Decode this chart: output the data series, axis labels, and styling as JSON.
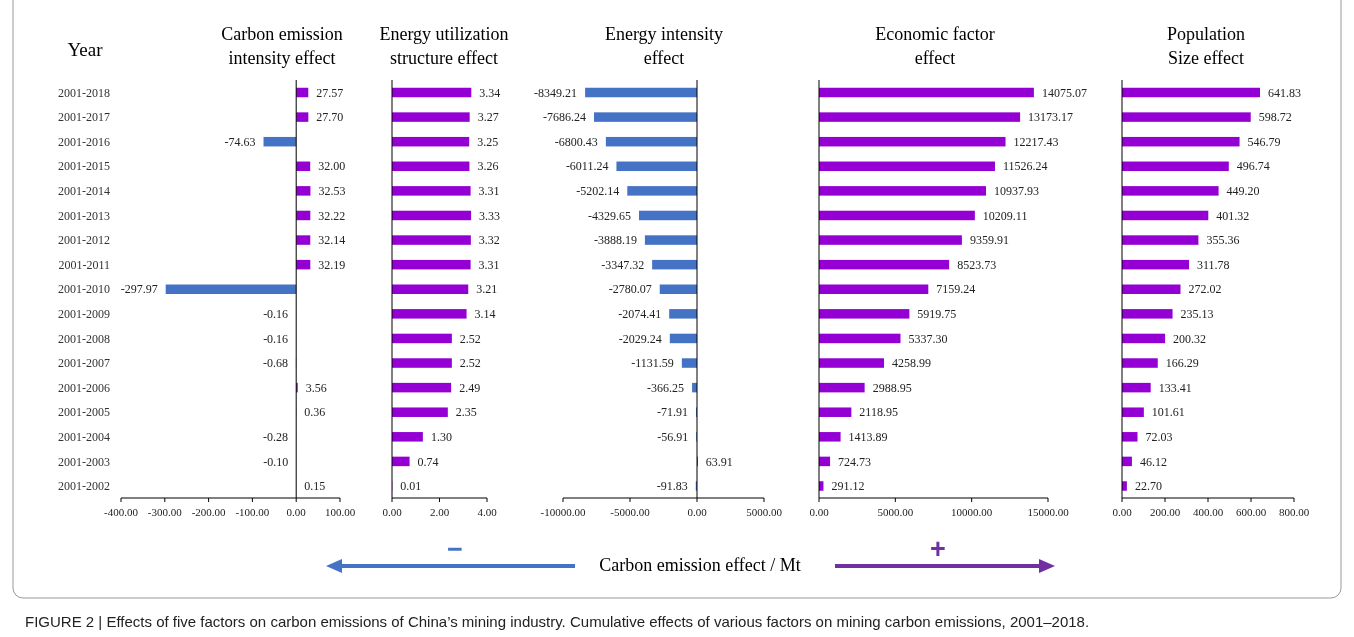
{
  "chart_data": [
    {
      "type": "bar",
      "orientation": "horizontal",
      "title": "Carbon emission\nintensity effect",
      "ylabel": "Year",
      "categories": [
        "2001-2018",
        "2001-2017",
        "2001-2016",
        "2001-2015",
        "2001-2014",
        "2001-2013",
        "2001-2012",
        "2001-2011",
        "2001-2010",
        "2001-2009",
        "2001-2008",
        "2001-2007",
        "2001-2006",
        "2001-2005",
        "2001-2004",
        "2001-2003",
        "2001-2002"
      ],
      "values": [
        27.57,
        27.7,
        -74.63,
        32.0,
        32.53,
        32.22,
        32.14,
        32.19,
        -297.97,
        -0.16,
        -0.16,
        -0.68,
        3.56,
        0.36,
        -0.28,
        -0.1,
        0.15
      ],
      "value_labels": [
        "27.57",
        "27.70",
        "-74.63",
        "32.00",
        "32.53",
        "32.22",
        "32.14",
        "32.19",
        "-297.97",
        "-0.16",
        "-0.16",
        "-0.68",
        "3.56",
        "0.36",
        "-0.28",
        "-0.10",
        "0.15"
      ],
      "colors": [
        "#9400d3",
        "#9400d3",
        "#4472c4",
        "#9400d3",
        "#9400d3",
        "#9400d3",
        "#9400d3",
        "#9400d3",
        "#4472c4",
        "#4472c4",
        "#4472c4",
        "#4472c4",
        "#9400d3",
        "#9400d3",
        "#4472c4",
        "#4472c4",
        "#9400d3"
      ],
      "xlim": [
        -400,
        100
      ],
      "xticks": [
        {
          "value": -400,
          "label": "-400.00"
        },
        {
          "value": -300,
          "label": "-300.00"
        },
        {
          "value": -200,
          "label": "-200.00"
        },
        {
          "value": -100,
          "label": "-100.00"
        },
        {
          "value": 0,
          "label": "0.00"
        },
        {
          "value": 100,
          "label": "100.00"
        }
      ],
      "annotations": [
        "FIGURE 2 | Effects of five factors on carbon emissions of China’s mining industry. Cumulative effects of various factors on mining carbon emissions, 2001–2018."
      ]
    },
    {
      "type": "bar",
      "orientation": "horizontal",
      "title": "Energy utilization\nstructure effect",
      "annotations": [
        "−"
      ],
      "categories": [
        null,
        null,
        null,
        null,
        null,
        null,
        null,
        null,
        null,
        null,
        null,
        null,
        null,
        null,
        null,
        null,
        null
      ],
      "values": [
        3.34,
        3.27,
        3.25,
        3.26,
        3.31,
        3.33,
        3.32,
        3.31,
        3.21,
        3.14,
        2.52,
        2.52,
        2.49,
        2.35,
        1.3,
        0.74,
        0.01
      ],
      "value_labels": [
        "3.34",
        "3.27",
        "3.25",
        "3.26",
        "3.31",
        "3.33",
        "3.32",
        "3.31",
        "3.21",
        "3.14",
        "2.52",
        "2.52",
        "2.49",
        "2.35",
        "1.30",
        "0.74",
        "0.01"
      ],
      "color": "#9400d3",
      "xlim": [
        0,
        4
      ],
      "xticks": [
        {
          "value": 0,
          "label": "0.00"
        },
        {
          "value": 2,
          "label": "2.00"
        },
        {
          "value": 4,
          "label": "4.00"
        }
      ]
    },
    {
      "type": "bar",
      "orientation": "horizontal",
      "title": "Energy intensity\neffect",
      "xlabel": "Carbon emission effect / Mt",
      "categories": [
        null,
        null,
        null,
        null,
        null,
        null,
        null,
        null,
        null,
        null,
        null,
        null,
        null,
        null,
        null,
        null,
        null
      ],
      "values": [
        -8349.21,
        -7686.24,
        -6800.43,
        -6011.24,
        -5202.14,
        -4329.65,
        -3888.19,
        -3347.32,
        -2780.07,
        -2074.41,
        -2029.24,
        -1131.59,
        -366.25,
        -71.91,
        -56.91,
        63.91,
        -91.83
      ],
      "value_labels": [
        "-8349.21",
        "-7686.24",
        "-6800.43",
        "-6011.24",
        "-5202.14",
        "-4329.65",
        "-3888.19",
        "-3347.32",
        "-2780.07",
        "-2074.41",
        "-2029.24",
        "-1131.59",
        "-366.25",
        "-71.91",
        "-56.91",
        "63.91",
        "-91.83"
      ],
      "colors": [
        "#4472c4",
        "#4472c4",
        "#4472c4",
        "#4472c4",
        "#4472c4",
        "#4472c4",
        "#4472c4",
        "#4472c4",
        "#4472c4",
        "#4472c4",
        "#4472c4",
        "#4472c4",
        "#4472c4",
        "#4472c4",
        "#4472c4",
        "#9400d3",
        "#4472c4"
      ],
      "xlim": [
        -10000,
        5000
      ],
      "xticks": [
        {
          "value": -10000,
          "label": "-10000.00"
        },
        {
          "value": -5000,
          "label": "-5000.00"
        },
        {
          "value": 0,
          "label": "0.00"
        },
        {
          "value": 5000,
          "label": "5000.00"
        }
      ]
    },
    {
      "type": "bar",
      "orientation": "horizontal",
      "title": "Economic factor\neffect",
      "annotations": [
        "+"
      ],
      "categories": [
        null,
        null,
        null,
        null,
        null,
        null,
        null,
        null,
        null,
        null,
        null,
        null,
        null,
        null,
        null,
        null,
        null
      ],
      "values": [
        14075.07,
        13173.17,
        12217.43,
        11526.24,
        10937.93,
        10209.11,
        9359.91,
        8523.73,
        7159.24,
        5919.75,
        5337.3,
        4258.99,
        2988.95,
        2118.95,
        1413.89,
        724.73,
        291.12
      ],
      "value_labels": [
        "14075.07",
        "13173.17",
        "12217.43",
        "11526.24",
        "10937.93",
        "10209.11",
        "9359.91",
        "8523.73",
        "7159.24",
        "5919.75",
        "5337.30",
        "4258.99",
        "2988.95",
        "2118.95",
        "1413.89",
        "724.73",
        "291.12"
      ],
      "color": "#9400d3",
      "xlim": [
        0,
        15000
      ],
      "xticks": [
        {
          "value": 0,
          "label": "0.00"
        },
        {
          "value": 5000,
          "label": "5000.00"
        },
        {
          "value": 10000,
          "label": "10000.00"
        },
        {
          "value": 15000,
          "label": "15000.00"
        }
      ]
    },
    {
      "type": "bar",
      "orientation": "horizontal",
      "title": "Population\nSize effect",
      "categories": [
        null,
        null,
        null,
        null,
        null,
        null,
        null,
        null,
        null,
        null,
        null,
        null,
        null,
        null,
        null,
        null,
        null
      ],
      "values": [
        641.83,
        598.72,
        546.79,
        496.74,
        449.2,
        401.32,
        355.36,
        311.78,
        272.02,
        235.13,
        200.32,
        166.29,
        133.41,
        101.61,
        72.03,
        46.12,
        22.7
      ],
      "value_labels": [
        "641.83",
        "598.72",
        "546.79",
        "496.74",
        "449.20",
        "401.32",
        "355.36",
        "311.78",
        "272.02",
        "235.13",
        "200.32",
        "166.29",
        "133.41",
        "101.61",
        "72.03",
        "46.12",
        "22.70"
      ],
      "color": "#9400d3",
      "xlim": [
        0,
        800
      ],
      "xticks": [
        {
          "value": 0,
          "label": "0.00"
        },
        {
          "value": 200,
          "label": "200.00"
        },
        {
          "value": 400,
          "label": "400.00"
        },
        {
          "value": 600,
          "label": "600.00"
        },
        {
          "value": 800,
          "label": "800.00"
        }
      ]
    }
  ]
}
